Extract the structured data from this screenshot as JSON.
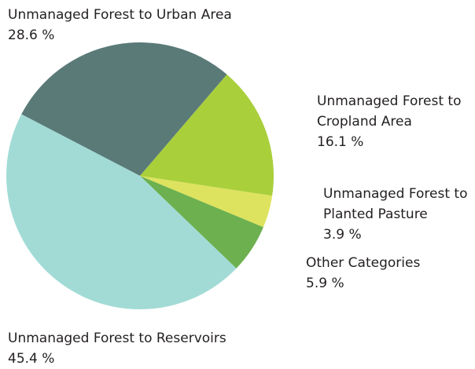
{
  "chart_data": {
    "type": "pie",
    "categories": [
      "Unmanaged Forest to Urban Area",
      "Unmanaged Forest to Cropland Area",
      "Unmanaged Forest to Planted Pasture",
      "Other Categories",
      "Unmanaged Forest to Reservoirs"
    ],
    "values": [
      28.6,
      16.1,
      3.9,
      5.9,
      45.4
    ],
    "value_labels": [
      "28.6 %",
      "16.1 %",
      "3.9 %",
      "5.9 %",
      "45.4 %"
    ],
    "colors": [
      "#5a7a78",
      "#a9cf3b",
      "#dde35e",
      "#6cb04f",
      "#a2dbd6"
    ]
  }
}
